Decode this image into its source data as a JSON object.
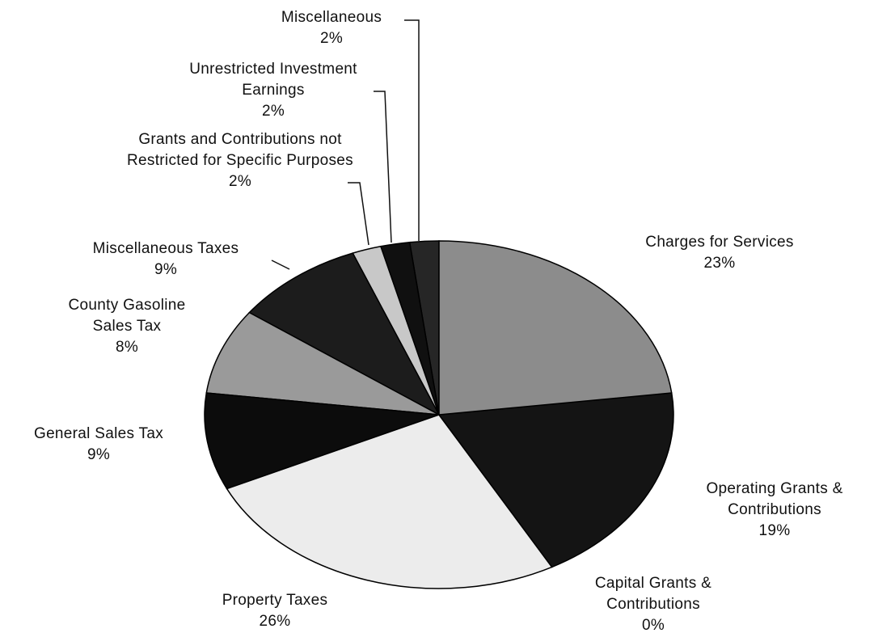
{
  "chart_data": {
    "type": "pie",
    "categories": [
      "Charges for Services",
      "Operating Grants & Contributions",
      "Capital Grants & Contributions",
      "Property Taxes",
      "General Sales Tax",
      "County Gasoline Sales Tax",
      "Miscellaneous Taxes",
      "Grants and Contributions not Restricted for Specific Purposes",
      "Unrestricted Investment Earnings",
      "Miscellaneous"
    ],
    "values": [
      23,
      19,
      0,
      26,
      9,
      8,
      9,
      2,
      2,
      2
    ],
    "value_labels": [
      "23%",
      "19%",
      "0%",
      "26%",
      "9%",
      "8%",
      "9%",
      "2%",
      "2%",
      "2%"
    ],
    "colors": [
      "#8c8c8c",
      "#141414",
      "#dcdcdc",
      "#ececec",
      "#0c0c0c",
      "#9a9a9a",
      "#1c1c1c",
      "#c8c8c8",
      "#101010",
      "#262626"
    ]
  }
}
